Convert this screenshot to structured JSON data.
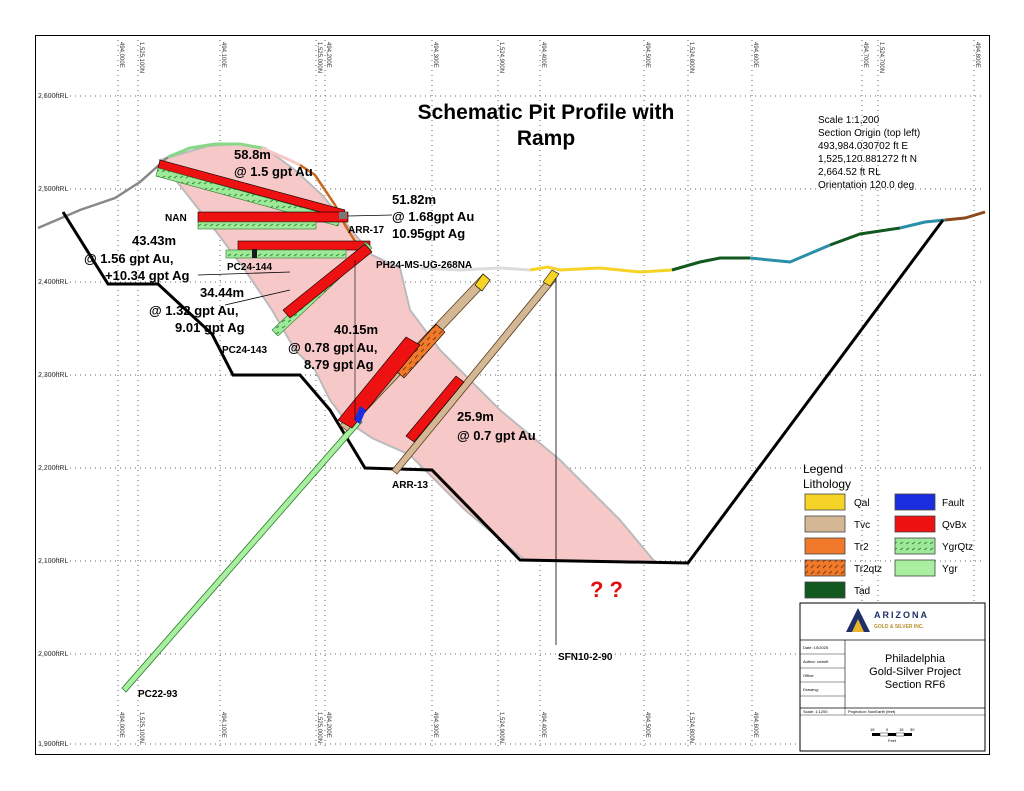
{
  "title_line1": "Schematic Pit Profile with",
  "title_line2": "Ramp",
  "section_info": {
    "scale": "Scale 1:1,200",
    "origin_label": "Section Origin (top left)",
    "easting": "493,984.030702 ft E",
    "northing": "1,525,120.881272 ft N",
    "elevation": "2,664.52 ft RL",
    "orientation": "Orientation 120.0 deg"
  },
  "rl_labels": [
    "2,600ftRL",
    "2,500ftRL",
    "2,400ftRL",
    "2,300ftRL",
    "2,200ftRL",
    "2,100ftRL",
    "2,000ftRL",
    "1,900ftRL"
  ],
  "top_ticks": [
    "494,000E",
    "1,525,100N",
    "494,100E",
    "1,525,000N",
    "494,200E",
    "494,300E",
    "1,524,900N",
    "494,400E",
    "494,500E",
    "1,524,800N",
    "494,600E",
    "494,700E",
    "1,524,700N",
    "494,800E"
  ],
  "bottom_ticks": [
    "494,000E",
    "1,525,100N",
    "494,100E",
    "1,525,000N",
    "494,200E",
    "494,300E",
    "1,524,900N",
    "494,400E",
    "494,500E",
    "1,524,800N",
    "494,600E"
  ],
  "intercepts": {
    "a_len": "58.8m",
    "a_grade": "@ 1.5 gpt Au",
    "b_len": "51.82m",
    "b_au": "@ 1.68gpt Au",
    "b_ag": "10.95gpt Ag",
    "c_len": "43.43m",
    "c_au": "@ 1.56 gpt Au,",
    "c_ag": "+10.34 gpt Ag",
    "d_len": "34.44m",
    "d_au": "@ 1.32 gpt Au,",
    "d_ag": "9.01 gpt Ag",
    "e_len": "40.15m",
    "e_au": "@ 0.78 gpt Au,",
    "e_ag": "8.79 gpt Ag",
    "f_len": "25.9m",
    "f_au": "@ 0.7 gpt Au"
  },
  "holes": {
    "nan": "NAN",
    "arr17": "ARR-17",
    "pc24_144": "PC24-144",
    "ph24": "PH24-MS-UG-268NA",
    "pc24_143": "PC24-143",
    "arr13": "ARR-13",
    "sfn": "SFN10-2-90",
    "pc22": "PC22-93"
  },
  "question_marks": "? ?",
  "legend": {
    "title": "Legend",
    "subtitle": "Lithology",
    "items": [
      {
        "label": "Qal",
        "color": "#f5d327"
      },
      {
        "label": "Fault",
        "color": "#1a2ee0"
      },
      {
        "label": "Tvc",
        "color": "#d4b896"
      },
      {
        "label": "QvBx",
        "color": "#ee1111"
      },
      {
        "label": "Tr2",
        "color": "#f07a2a"
      },
      {
        "label": "YgrQtz",
        "color": "#8fe88f"
      },
      {
        "label": "Tr2qtz",
        "color": "#f07a2a"
      },
      {
        "label": "Ygr",
        "color": "#a8f0a0"
      },
      {
        "label": "Tad",
        "color": "#11591e"
      }
    ]
  },
  "title_block": {
    "company": "ARIZONA",
    "company_sub": "GOLD & SILVER INC.",
    "project_line1": "Philadelphia",
    "project_line2": "Gold-Silver Project",
    "project_line3": "Section RF6",
    "rows": [
      {
        "label": "Date: 10/2025"
      },
      {
        "label": "Author: cwhelf"
      },
      {
        "label": "Office:"
      },
      {
        "label": "Drawing:"
      }
    ],
    "scale_row": "Scale: 1:1200",
    "projection": "Projection: NonEarth (feet)",
    "scale_bar_labels": [
      "15",
      "0",
      "15",
      "30"
    ],
    "scale_bar_unit": "Feet"
  },
  "colors": {
    "zone": "#f7c8c8",
    "qal": "#f5d327",
    "tvc": "#d4b896",
    "qvbx": "#ee1111",
    "ygr": "#a8f0a0",
    "tad": "#11591e",
    "teal": "#2a8fa8",
    "brown": "#8b4a1c",
    "fault": "#1a2ee0",
    "orange": "#f07a2a"
  }
}
